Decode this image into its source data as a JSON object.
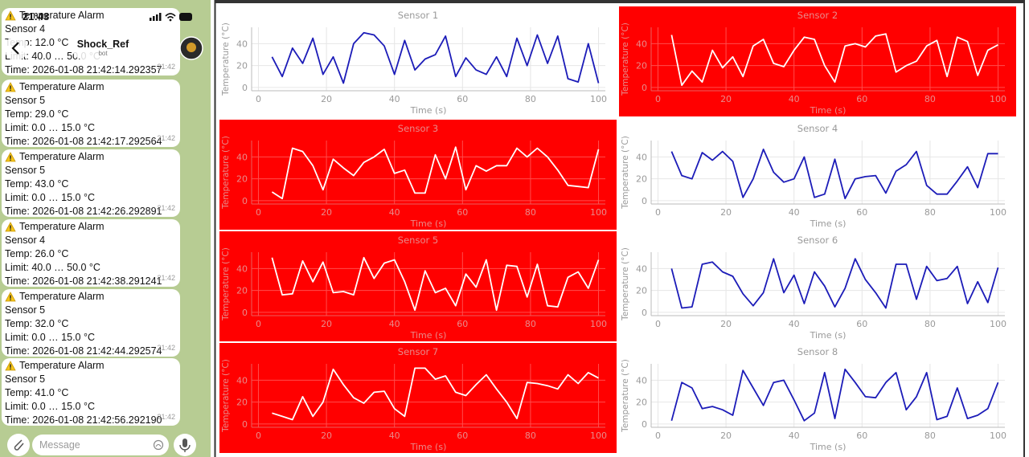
{
  "chat": {
    "status_time": "21:43",
    "bot_name": "Shock_Ref",
    "bot_label": "bot",
    "input_placeholder": "Message",
    "messages": [
      {
        "title": "Temperature Alarm",
        "sensor": "Sensor 4",
        "temp": "Temp: 12.0 °C",
        "limit": "Limit: 40.0 … 50.0 °C",
        "time": "Time: 2026-01-08 21:42:14.292357",
        "sent": "21:42"
      },
      {
        "title": "Temperature Alarm",
        "sensor": "Sensor 5",
        "temp": "Temp: 29.0 °C",
        "limit": "Limit: 0.0 … 15.0 °C",
        "time": "Time: 2026-01-08 21:42:17.292564",
        "sent": "21:42"
      },
      {
        "title": "Temperature Alarm",
        "sensor": "Sensor 5",
        "temp": "Temp: 43.0 °C",
        "limit": "Limit: 0.0 … 15.0 °C",
        "time": "Time: 2026-01-08 21:42:26.292891",
        "sent": "21:42"
      },
      {
        "title": "Temperature Alarm",
        "sensor": "Sensor 4",
        "temp": "Temp: 26.0 °C",
        "limit": "Limit: 40.0 … 50.0 °C",
        "time": "Time: 2026-01-08 21:42:38.291241",
        "sent": "21:42"
      },
      {
        "title": "Temperature Alarm",
        "sensor": "Sensor 5",
        "temp": "Temp: 32.0 °C",
        "limit": "Limit: 0.0 … 15.0 °C",
        "time": "Time: 2026-01-08 21:42:44.292574",
        "sent": "21:42"
      },
      {
        "title": "Temperature Alarm",
        "sensor": "Sensor 5",
        "temp": "Temp: 41.0 °C",
        "limit": "Limit: 0.0 … 15.0 °C",
        "time": "Time: 2026-01-08 21:42:56.292190",
        "sent": "21:42"
      }
    ]
  },
  "chart_data": [
    {
      "type": "line",
      "title": "Sensor 1",
      "x_label": "Time (s)",
      "y_label": "Temperature (°C)",
      "color": "#1c1cb8",
      "background": "#ffffff",
      "grid": true,
      "x": [
        4,
        7,
        10,
        13,
        16,
        19,
        22,
        25,
        28,
        31,
        34,
        37,
        40,
        43,
        46,
        49,
        52,
        55,
        58,
        61,
        64,
        67,
        70,
        73,
        76,
        79,
        82,
        85,
        88,
        91,
        94,
        97,
        100
      ],
      "values": [
        28,
        10,
        36,
        22,
        45,
        12,
        28,
        4,
        40,
        50,
        48,
        38,
        12,
        43,
        16,
        26,
        30,
        47,
        10,
        27,
        16,
        12,
        28,
        10,
        45,
        20,
        48,
        22,
        47,
        8,
        5,
        40,
        4
      ],
      "xlim": [
        -2,
        102
      ],
      "ylim": [
        -3,
        55
      ],
      "xticks": [
        0,
        20,
        40,
        60,
        80,
        100
      ],
      "yticks": [
        0,
        20,
        40
      ]
    },
    {
      "type": "line",
      "title": "Sensor 2",
      "x_label": "Time (s)",
      "y_label": "Temperature (°C)",
      "color": "#ffffff",
      "background": "#ff0000",
      "grid": true,
      "x": [
        4,
        7,
        10,
        13,
        16,
        19,
        22,
        25,
        28,
        31,
        34,
        37,
        40,
        43,
        46,
        49,
        52,
        55,
        58,
        61,
        64,
        67,
        70,
        73,
        76,
        79,
        82,
        85,
        88,
        91,
        94,
        97,
        100
      ],
      "values": [
        48,
        2,
        15,
        5,
        34,
        18,
        28,
        10,
        38,
        44,
        22,
        19,
        34,
        46,
        44,
        20,
        5,
        38,
        40,
        37,
        47,
        49,
        14,
        20,
        24,
        38,
        43,
        10,
        46,
        42,
        11,
        34,
        39
      ],
      "xlim": [
        -2,
        102
      ],
      "ylim": [
        -3,
        55
      ],
      "xticks": [
        0,
        20,
        40,
        60,
        80,
        100
      ],
      "yticks": [
        0,
        20,
        40
      ]
    },
    {
      "type": "line",
      "title": "Sensor 3",
      "x_label": "Time (s)",
      "y_label": "Temperature (°C)",
      "color": "#ffffff",
      "background": "#ff0000",
      "grid": true,
      "x": [
        4,
        7,
        10,
        13,
        16,
        19,
        22,
        25,
        28,
        31,
        34,
        37,
        40,
        43,
        46,
        49,
        52,
        55,
        58,
        61,
        64,
        67,
        70,
        73,
        76,
        79,
        82,
        85,
        88,
        91,
        94,
        97,
        100
      ],
      "values": [
        8,
        2,
        48,
        45,
        32,
        10,
        38,
        30,
        23,
        35,
        40,
        47,
        25,
        28,
        7,
        7,
        42,
        20,
        49,
        10,
        32,
        27,
        32,
        32,
        48,
        40,
        48,
        40,
        28,
        14,
        13,
        12,
        47
      ],
      "xlim": [
        -2,
        102
      ],
      "ylim": [
        -3,
        55
      ],
      "xticks": [
        0,
        20,
        40,
        60,
        80,
        100
      ],
      "yticks": [
        0,
        20,
        40
      ]
    },
    {
      "type": "line",
      "title": "Sensor 4",
      "x_label": "Time (s)",
      "y_label": "Temperature (°C)",
      "color": "#1c1cb8",
      "background": "#ffffff",
      "grid": true,
      "x": [
        4,
        7,
        10,
        13,
        16,
        19,
        22,
        25,
        28,
        31,
        34,
        37,
        40,
        43,
        46,
        49,
        52,
        55,
        58,
        61,
        64,
        67,
        70,
        73,
        76,
        79,
        82,
        85,
        88,
        91,
        94,
        97,
        100
      ],
      "values": [
        45,
        23,
        20,
        44,
        37,
        45,
        36,
        3,
        20,
        47,
        26,
        17,
        20,
        40,
        3,
        6,
        38,
        2,
        20,
        22,
        23,
        7,
        27,
        33,
        45,
        14,
        6,
        6,
        18,
        31,
        12,
        43,
        43
      ],
      "xlim": [
        -2,
        102
      ],
      "ylim": [
        -3,
        55
      ],
      "xticks": [
        0,
        20,
        40,
        60,
        80,
        100
      ],
      "yticks": [
        0,
        20,
        40
      ]
    },
    {
      "type": "line",
      "title": "Sensor 5",
      "x_label": "Time (s)",
      "y_label": "Temperature (°C)",
      "color": "#ffffff",
      "background": "#ff0000",
      "grid": true,
      "x": [
        4,
        7,
        10,
        13,
        16,
        19,
        22,
        25,
        28,
        31,
        34,
        37,
        40,
        43,
        46,
        49,
        52,
        55,
        58,
        61,
        64,
        67,
        70,
        73,
        76,
        79,
        82,
        85,
        88,
        91,
        94,
        97,
        100
      ],
      "values": [
        50,
        16,
        17,
        47,
        28,
        46,
        18,
        19,
        16,
        50,
        31,
        45,
        48,
        28,
        2,
        38,
        18,
        22,
        6,
        35,
        23,
        48,
        2,
        43,
        42,
        14,
        44,
        6,
        5,
        32,
        37,
        22,
        48
      ],
      "xlim": [
        -2,
        102
      ],
      "ylim": [
        -3,
        55
      ],
      "xticks": [
        0,
        20,
        40,
        60,
        80,
        100
      ],
      "yticks": [
        0,
        20,
        40
      ]
    },
    {
      "type": "line",
      "title": "Sensor 6",
      "x_label": "Time (s)",
      "y_label": "Temperature (°C)",
      "color": "#1c1cb8",
      "background": "#ffffff",
      "grid": true,
      "x": [
        4,
        7,
        10,
        13,
        16,
        19,
        22,
        25,
        28,
        31,
        34,
        37,
        40,
        43,
        46,
        49,
        52,
        55,
        58,
        61,
        64,
        67,
        70,
        73,
        76,
        79,
        82,
        85,
        88,
        91,
        94,
        97,
        100
      ],
      "values": [
        40,
        4,
        5,
        44,
        46,
        37,
        33,
        17,
        6,
        18,
        49,
        18,
        34,
        8,
        37,
        24,
        5,
        22,
        49,
        30,
        18,
        4,
        44,
        44,
        12,
        42,
        29,
        31,
        42,
        8,
        28,
        9,
        41
      ],
      "xlim": [
        -2,
        102
      ],
      "ylim": [
        -3,
        55
      ],
      "xticks": [
        0,
        20,
        40,
        60,
        80,
        100
      ],
      "yticks": [
        0,
        20,
        40
      ]
    },
    {
      "type": "line",
      "title": "Sensor 7",
      "x_label": "Time (s)",
      "y_label": "Temperature (°C)",
      "color": "#ffffff",
      "background": "#ff0000",
      "grid": true,
      "x": [
        4,
        7,
        10,
        13,
        16,
        19,
        22,
        25,
        28,
        31,
        34,
        37,
        40,
        43,
        46,
        49,
        52,
        55,
        58,
        61,
        64,
        67,
        70,
        73,
        76,
        79,
        82,
        85,
        88,
        91,
        94,
        97,
        100
      ],
      "values": [
        10,
        7,
        4,
        25,
        7,
        20,
        50,
        36,
        24,
        19,
        29,
        30,
        14,
        7,
        51,
        51,
        41,
        44,
        29,
        26,
        36,
        45,
        32,
        20,
        5,
        38,
        37,
        35,
        32,
        45,
        37,
        47,
        42
      ],
      "xlim": [
        -2,
        102
      ],
      "ylim": [
        -3,
        55
      ],
      "xticks": [
        0,
        20,
        40,
        60,
        80,
        100
      ],
      "yticks": [
        0,
        20,
        40
      ]
    },
    {
      "type": "line",
      "title": "Sensor 8",
      "x_label": "Time (s)",
      "y_label": "Temperature (°C)",
      "color": "#1c1cb8",
      "background": "#ffffff",
      "grid": true,
      "x": [
        4,
        7,
        10,
        13,
        16,
        19,
        22,
        25,
        28,
        31,
        34,
        37,
        40,
        43,
        46,
        49,
        52,
        55,
        58,
        61,
        64,
        67,
        70,
        73,
        76,
        79,
        82,
        85,
        88,
        91,
        94,
        97,
        100
      ],
      "values": [
        3,
        38,
        33,
        14,
        16,
        13,
        8,
        49,
        33,
        17,
        38,
        40,
        22,
        3,
        10,
        47,
        5,
        50,
        38,
        25,
        24,
        38,
        47,
        13,
        25,
        47,
        4,
        7,
        33,
        5,
        8,
        14,
        38
      ],
      "xlim": [
        -2,
        102
      ],
      "ylim": [
        -3,
        55
      ],
      "xticks": [
        0,
        20,
        40,
        60,
        80,
        100
      ],
      "yticks": [
        0,
        20,
        40
      ]
    }
  ]
}
